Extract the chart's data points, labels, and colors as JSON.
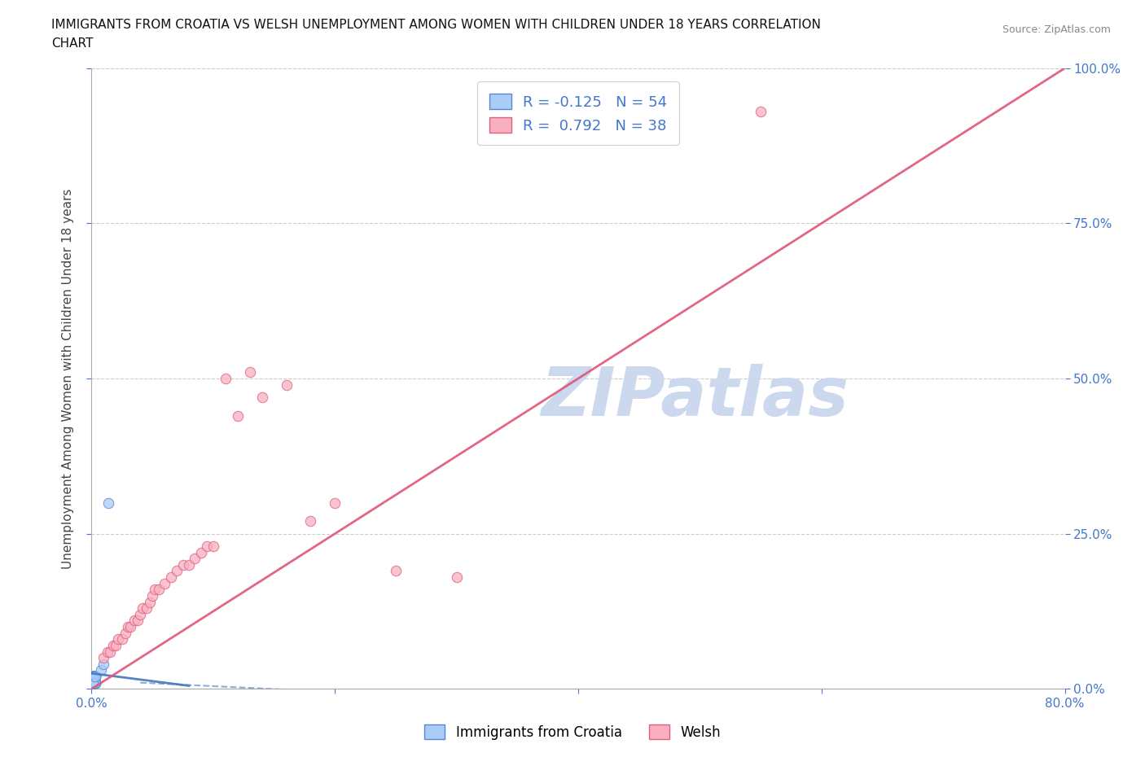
{
  "title_line1": "IMMIGRANTS FROM CROATIA VS WELSH UNEMPLOYMENT AMONG WOMEN WITH CHILDREN UNDER 18 YEARS CORRELATION",
  "title_line2": "CHART",
  "source": "Source: ZipAtlas.com",
  "ylabel_label": "Unemployment Among Women with Children Under 18 years",
  "xlim": [
    0.0,
    0.8
  ],
  "ylim": [
    0.0,
    1.0
  ],
  "blue_R": -0.125,
  "blue_N": 54,
  "pink_R": 0.792,
  "pink_N": 38,
  "blue_color": "#aaccf8",
  "pink_color": "#f8b0c0",
  "blue_edge_color": "#5588cc",
  "pink_edge_color": "#e06080",
  "blue_line_color": "#4477bb",
  "pink_line_color": "#e05575",
  "tick_color": "#4477cc",
  "grid_color": "#cccccc",
  "bg_color": "#ffffff",
  "watermark": "ZIPatlas",
  "watermark_color": "#ccd8ee",
  "blue_scatter_x": [
    0.002,
    0.003,
    0.001,
    0.002,
    0.001,
    0.003,
    0.002,
    0.001,
    0.003,
    0.002,
    0.001,
    0.002,
    0.001,
    0.003,
    0.002,
    0.001,
    0.002,
    0.001,
    0.002,
    0.003,
    0.002,
    0.001,
    0.002,
    0.003,
    0.002,
    0.001,
    0.002,
    0.003,
    0.001,
    0.002,
    0.003,
    0.002,
    0.001,
    0.002,
    0.001,
    0.002,
    0.003,
    0.002,
    0.001,
    0.002,
    0.003,
    0.002,
    0.001,
    0.003,
    0.002,
    0.001,
    0.002,
    0.003,
    0.002,
    0.001,
    0.003,
    0.008,
    0.01,
    0.014
  ],
  "blue_scatter_y": [
    0.01,
    0.02,
    0.01,
    0.01,
    0.02,
    0.01,
    0.01,
    0.02,
    0.01,
    0.01,
    0.01,
    0.02,
    0.01,
    0.01,
    0.02,
    0.01,
    0.01,
    0.01,
    0.02,
    0.01,
    0.01,
    0.02,
    0.01,
    0.01,
    0.02,
    0.01,
    0.01,
    0.02,
    0.01,
    0.01,
    0.01,
    0.02,
    0.01,
    0.02,
    0.01,
    0.01,
    0.02,
    0.01,
    0.01,
    0.01,
    0.02,
    0.01,
    0.02,
    0.01,
    0.01,
    0.02,
    0.01,
    0.01,
    0.02,
    0.01,
    0.02,
    0.03,
    0.04,
    0.3
  ],
  "pink_scatter_x": [
    0.01,
    0.013,
    0.015,
    0.018,
    0.02,
    0.022,
    0.025,
    0.028,
    0.03,
    0.032,
    0.035,
    0.038,
    0.04,
    0.042,
    0.045,
    0.048,
    0.05,
    0.052,
    0.055,
    0.06,
    0.065,
    0.07,
    0.075,
    0.08,
    0.085,
    0.09,
    0.095,
    0.1,
    0.11,
    0.12,
    0.13,
    0.14,
    0.16,
    0.18,
    0.2,
    0.25,
    0.3,
    0.55
  ],
  "pink_scatter_y": [
    0.05,
    0.06,
    0.06,
    0.07,
    0.07,
    0.08,
    0.08,
    0.09,
    0.1,
    0.1,
    0.11,
    0.11,
    0.12,
    0.13,
    0.13,
    0.14,
    0.15,
    0.16,
    0.16,
    0.17,
    0.18,
    0.19,
    0.2,
    0.2,
    0.21,
    0.22,
    0.23,
    0.23,
    0.5,
    0.44,
    0.51,
    0.47,
    0.49,
    0.27,
    0.3,
    0.19,
    0.18,
    0.93
  ],
  "blue_trendline_x": [
    0.0,
    0.08
  ],
  "blue_trendline_y": [
    0.025,
    0.005
  ],
  "pink_trendline_x": [
    0.0,
    0.8
  ],
  "pink_trendline_y": [
    0.0,
    1.0
  ]
}
